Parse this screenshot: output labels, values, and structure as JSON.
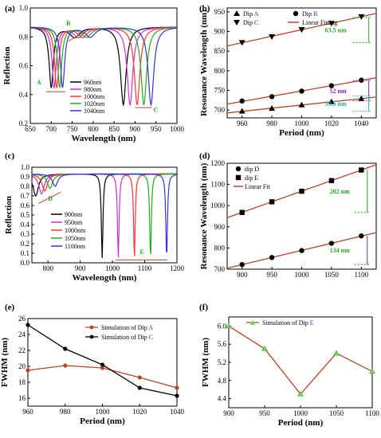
{
  "chart_data": [
    {
      "panel": "(a)",
      "type": "line",
      "xlabel": "Wavelength (nm)",
      "ylabel": "Reflection",
      "xlim": [
        650,
        1000
      ],
      "ylim": [
        0.2,
        1.0
      ],
      "xticks": [
        "650",
        "700",
        "750",
        "800",
        "850",
        "900",
        "950",
        "1000"
      ],
      "yticks": [
        "0.2",
        "0.4",
        "0.6",
        "0.8",
        "1.0"
      ],
      "legend_position": "center-left",
      "annotations": [
        "A",
        "B",
        "C"
      ],
      "series": [
        {
          "name": "960nm",
          "color": "#000000",
          "dips": [
            {
              "x": 700,
              "y": 0.45
            },
            {
              "x": 756,
              "y": 0.8
            },
            {
              "x": 872,
              "y": 0.33
            }
          ]
        },
        {
          "name": "980nm",
          "color": "#cc33cc",
          "dips": [
            {
              "x": 707,
              "y": 0.45
            },
            {
              "x": 765,
              "y": 0.8
            },
            {
              "x": 888,
              "y": 0.33
            }
          ]
        },
        {
          "name": "1000nm",
          "color": "#ff3333",
          "dips": [
            {
              "x": 713,
              "y": 0.45
            },
            {
              "x": 775,
              "y": 0.8
            },
            {
              "x": 905,
              "y": 0.33
            }
          ]
        },
        {
          "name": "1020nm",
          "color": "#22aa22",
          "dips": [
            {
              "x": 720,
              "y": 0.45
            },
            {
              "x": 784,
              "y": 0.8
            },
            {
              "x": 921,
              "y": 0.33
            }
          ]
        },
        {
          "name": "1040nm",
          "color": "#3333cc",
          "dips": [
            {
              "x": 727,
              "y": 0.45
            },
            {
              "x": 793,
              "y": 0.8
            },
            {
              "x": 938,
              "y": 0.33
            }
          ]
        }
      ]
    },
    {
      "panel": "(b)",
      "type": "scatter",
      "xlabel": "Period (nm)",
      "ylabel": "Resonance Wavelength (nm)",
      "xlim": [
        950,
        1050
      ],
      "ylim": [
        680,
        960
      ],
      "xticks": [
        "960",
        "980",
        "1000",
        "1020",
        "1040"
      ],
      "yticks": [
        "700",
        "750",
        "800",
        "850",
        "900",
        "950"
      ],
      "legend_position": "top",
      "x": [
        960,
        980,
        1000,
        1020,
        1040
      ],
      "series": [
        {
          "name": "Dip A",
          "marker": "triangle-up",
          "values": [
            697,
            704,
            713,
            721,
            729
          ]
        },
        {
          "name": "Dip B",
          "marker": "circle",
          "values": [
            723,
            734,
            748,
            762,
            776
          ]
        },
        {
          "name": "Dip C",
          "marker": "triangle-down",
          "values": [
            872,
            887,
            905,
            921,
            938
          ]
        }
      ],
      "fit_label": "Linear Fitting",
      "annotations": [
        "63.5 nm",
        "52 nm",
        "39.5 nm"
      ]
    },
    {
      "panel": "(c)",
      "type": "line",
      "xlabel": "Wavelength (nm)",
      "ylabel": "Reflection",
      "xlim": [
        750,
        1200
      ],
      "ylim": [
        0.0,
        1.0
      ],
      "xticks": [
        "800",
        "900",
        "1000",
        "1100",
        "1200"
      ],
      "yticks": [
        "0.0",
        "0.1",
        "0.2",
        "0.3",
        "0.4",
        "0.5",
        "0.6",
        "0.7",
        "0.8",
        "0.9",
        "1.0"
      ],
      "legend_position": "bottom-left",
      "annotations": [
        "D",
        "E"
      ],
      "series": [
        {
          "name": "900nm",
          "color": "#000000",
          "dips": [
            {
              "x": 762,
              "y": 0.7
            },
            {
              "x": 968,
              "y": 0.05
            }
          ]
        },
        {
          "name": "950nm",
          "color": "#cc33cc",
          "dips": [
            {
              "x": 780,
              "y": 0.72
            },
            {
              "x": 1018,
              "y": 0.05
            }
          ]
        },
        {
          "name": "1000nm",
          "color": "#ff3333",
          "dips": [
            {
              "x": 790,
              "y": 0.75
            },
            {
              "x": 1068,
              "y": 0.05
            }
          ]
        },
        {
          "name": "1050nm",
          "color": "#22aa22",
          "dips": [
            {
              "x": 806,
              "y": 0.78
            },
            {
              "x": 1118,
              "y": 0.05
            }
          ]
        },
        {
          "name": "1100nm",
          "color": "#3333cc",
          "dips": [
            {
              "x": 822,
              "y": 0.8
            },
            {
              "x": 1168,
              "y": 0.05
            }
          ]
        }
      ]
    },
    {
      "panel": "(d)",
      "type": "scatter",
      "xlabel": "",
      "ylabel": "Resonance Wavelength (nm)",
      "xlim": [
        875,
        1125
      ],
      "ylim": [
        700,
        1200
      ],
      "xticks": [
        "900",
        "950",
        "1000",
        "1050",
        "1100"
      ],
      "yticks": [
        "700",
        "800",
        "900",
        "1000",
        "1100",
        "1200"
      ],
      "legend_position": "top-left",
      "x": [
        900,
        950,
        1000,
        1050,
        1100
      ],
      "series": [
        {
          "name": "dip D",
          "marker": "circle",
          "values": [
            722,
            755,
            788,
            822,
            857
          ]
        },
        {
          "name": "dip E",
          "marker": "square",
          "values": [
            968,
            1018,
            1068,
            1118,
            1168
          ]
        }
      ],
      "fit_label": "Linear Fit",
      "annotations": [
        "202 nm",
        "134 nm"
      ]
    },
    {
      "panel": "(e)",
      "type": "line",
      "xlabel": "Period (nm)",
      "ylabel": "FWHM (nm)",
      "xlim": [
        960,
        1040
      ],
      "ylim": [
        15,
        26
      ],
      "xticks": [
        "960",
        "980",
        "1000",
        "1020",
        "1040"
      ],
      "yticks": [
        "16",
        "18",
        "20",
        "22",
        "24",
        "26"
      ],
      "legend_position": "top-right",
      "x": [
        960,
        980,
        1000,
        1020,
        1040
      ],
      "series": [
        {
          "name": "Simulation of Dip A",
          "color": "#b5472a",
          "values": [
            19.5,
            20.1,
            19.8,
            18.6,
            17.3
          ]
        },
        {
          "name": "Simulation of Dip C",
          "color": "#000000",
          "values": [
            25.2,
            22.2,
            20.2,
            17.3,
            16.3
          ]
        }
      ]
    },
    {
      "panel": "(f)",
      "type": "line",
      "xlabel": "Period (nm)",
      "ylabel": "FWHM (nm)",
      "xlim": [
        900,
        1100
      ],
      "ylim": [
        4.2,
        6.2
      ],
      "xticks": [
        "900",
        "950",
        "1000",
        "1050",
        "1100"
      ],
      "yticks": [
        "4.4",
        "4.8",
        "5.2",
        "5.6",
        "6.0"
      ],
      "legend_position": "top",
      "x": [
        900,
        950,
        1000,
        1050,
        1100
      ],
      "series": [
        {
          "name": "Simulation of Dip E",
          "color": "#b5472a",
          "values": [
            6.0,
            5.5,
            4.5,
            5.4,
            5.0
          ]
        }
      ]
    }
  ]
}
